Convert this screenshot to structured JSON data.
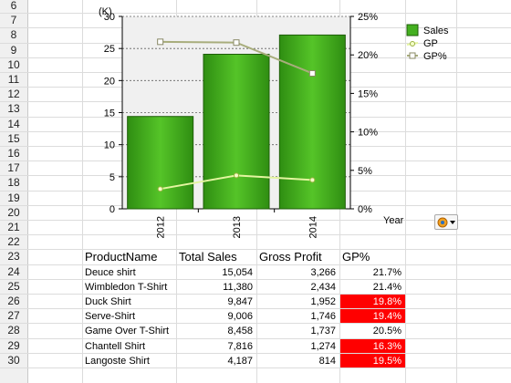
{
  "sheet": {
    "row_numbers": [
      "6",
      "7",
      "8",
      "9",
      "10",
      "11",
      "12",
      "13",
      "14",
      "15",
      "16",
      "17",
      "18",
      "19",
      "20",
      "21",
      "22",
      "23",
      "24",
      "25",
      "26",
      "27",
      "28",
      "29",
      "30"
    ],
    "table": {
      "headers": [
        "ProductName",
        "Total Sales",
        "Gross Profit",
        "GP%"
      ],
      "rows": [
        {
          "name": "Deuce shirt",
          "sales": "15,054",
          "profit": "3,266",
          "gp": "21.7%",
          "flag": false
        },
        {
          "name": "Wimbledon T-Shirt",
          "sales": "11,380",
          "profit": "2,434",
          "gp": "21.4%",
          "flag": false
        },
        {
          "name": "Duck Shirt",
          "sales": "9,847",
          "profit": "1,952",
          "gp": "19.8%",
          "flag": true
        },
        {
          "name": "Serve-Shirt",
          "sales": "9,006",
          "profit": "1,746",
          "gp": "19.4%",
          "flag": true
        },
        {
          "name": "Game Over T-Shirt",
          "sales": "8,458",
          "profit": "1,737",
          "gp": "20.5%",
          "flag": false
        },
        {
          "name": "Chantell Shirt",
          "sales": "7,816",
          "profit": "1,274",
          "gp": "16.3%",
          "flag": true
        },
        {
          "name": "Langoste Shirt",
          "sales": "4,187",
          "profit": "814",
          "gp": "19.5%",
          "flag": true
        }
      ],
      "highlight_color": "#ff0000"
    }
  },
  "chart_data": {
    "type": "bar",
    "categories": [
      "2012",
      "2013",
      "2014"
    ],
    "series": [
      {
        "name": "Sales",
        "kind": "bar",
        "axis": "left",
        "values": [
          14.4,
          24.1,
          27.1
        ],
        "color": "#3fae1d"
      },
      {
        "name": "GP",
        "kind": "line",
        "axis": "left",
        "values": [
          3.1,
          5.2,
          4.5
        ],
        "color": "#e4f5a0"
      },
      {
        "name": "GP%",
        "kind": "line",
        "axis": "right",
        "values": [
          21.7,
          21.6,
          17.6
        ],
        "color": "#a8ad7c"
      }
    ],
    "ylabel_left": "(K)",
    "xlabel": "Year",
    "ylim_left": [
      0,
      30
    ],
    "yticks_left": [
      "0",
      "5",
      "10",
      "15",
      "20",
      "25",
      "30"
    ],
    "ylim_right": [
      0,
      25
    ],
    "yticks_right": [
      "0%",
      "5%",
      "10%",
      "15%",
      "20%",
      "25%"
    ],
    "grid": true,
    "legend": "top-right",
    "ctrl_icon": "chart-options-icon"
  }
}
